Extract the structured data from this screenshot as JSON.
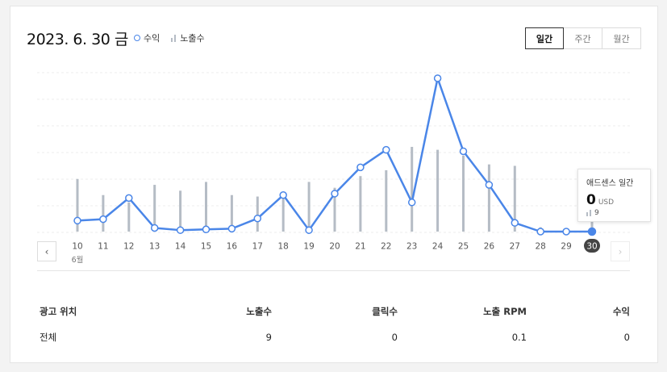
{
  "header": {
    "date_title": "2023. 6. 30 금",
    "legend": {
      "revenue": "수익",
      "impressions": "노출수"
    }
  },
  "tabs": [
    {
      "label": "일간",
      "active": true
    },
    {
      "label": "주간",
      "active": false
    },
    {
      "label": "월간",
      "active": false
    }
  ],
  "colors": {
    "line": "#4a86e8",
    "bar": "#b5bcc5",
    "selected_badge": "#444444"
  },
  "chart_data": {
    "type": "line",
    "categories": [
      "10",
      "11",
      "12",
      "13",
      "14",
      "15",
      "16",
      "17",
      "18",
      "19",
      "20",
      "21",
      "22",
      "23",
      "24",
      "25",
      "26",
      "27",
      "28",
      "29",
      "30"
    ],
    "month_label": "6월",
    "series": [
      {
        "name": "수익",
        "values": [
          7.5,
          8.5,
          23,
          2.5,
          1,
          1.5,
          2,
          9,
          25,
          1,
          26,
          44,
          56,
          20,
          105,
          55,
          32,
          6,
          0,
          0,
          0
        ]
      },
      {
        "name": "노출수",
        "values": [
          36,
          25,
          20,
          32,
          28,
          34,
          25,
          24,
          27,
          34,
          30,
          38,
          42,
          58,
          56,
          52,
          46,
          45,
          3,
          1,
          9
        ]
      }
    ],
    "selected": "30"
  },
  "tooltip": {
    "title": "애드센스 일간",
    "revenue": "0",
    "unit": "USD",
    "impressions": "9"
  },
  "table": {
    "headers": [
      "광고 위치",
      "노출수",
      "클릭수",
      "노출 RPM",
      "수익"
    ],
    "rows": [
      [
        "전체",
        "9",
        "0",
        "0.1",
        "0"
      ]
    ]
  },
  "nav": {
    "prev_icon": "‹",
    "next_icon": "›"
  }
}
